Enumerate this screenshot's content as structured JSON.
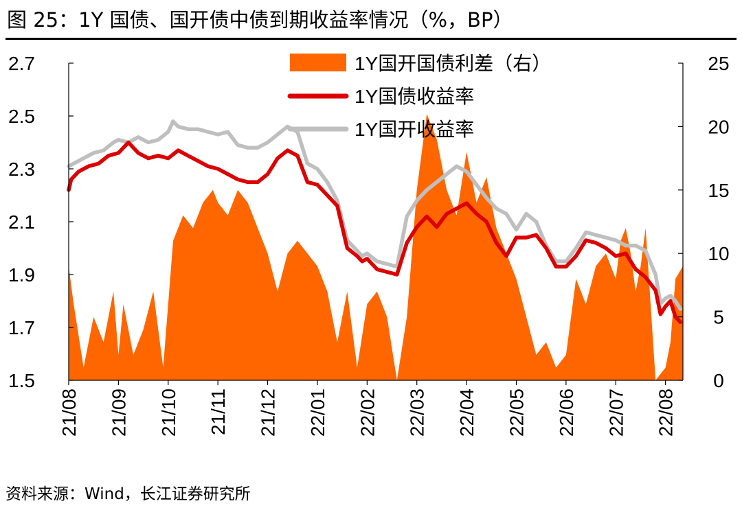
{
  "title": "图 25：1Y 国债、国开债中债到期收益率情况（%，BP）",
  "source": "资料来源：Wind，长江证券研究所",
  "chart_data": {
    "type": "line",
    "title": "图 25：1Y 国债、国开债中债到期收益率情况（%，BP）",
    "x_tick_labels": [
      "21/08",
      "21/09",
      "21/10",
      "21/11",
      "21/12",
      "22/01",
      "22/02",
      "22/03",
      "22/04",
      "22/05",
      "22/06",
      "22/07",
      "22/08"
    ],
    "x_range": [
      0,
      12.35
    ],
    "ylim_left": [
      1.5,
      2.7
    ],
    "yticks_left": [
      1.5,
      1.7,
      1.9,
      2.1,
      2.3,
      2.5,
      2.7
    ],
    "ytick_labels_left": [
      "1.5",
      "1.7",
      "1.9",
      "2.1",
      "2.3",
      "2.5",
      "2.7"
    ],
    "ylim_right": [
      0,
      25
    ],
    "yticks_right": [
      0,
      5,
      10,
      15,
      20,
      25
    ],
    "ytick_labels_right": [
      "0",
      "5",
      "10",
      "15",
      "20",
      "25"
    ],
    "legend_position": "top-center",
    "series": [
      {
        "name": "1Y国开国债利差（右）",
        "type": "area",
        "axis": "right",
        "color": "#FF6600",
        "x": [
          0,
          0.1,
          0.3,
          0.5,
          0.7,
          0.9,
          1.0,
          1.1,
          1.3,
          1.5,
          1.7,
          1.9,
          2.0,
          2.1,
          2.3,
          2.5,
          2.7,
          2.9,
          3.0,
          3.2,
          3.4,
          3.6,
          3.8,
          4.0,
          4.2,
          4.4,
          4.6,
          4.8,
          5.0,
          5.2,
          5.4,
          5.6,
          5.8,
          6.0,
          6.2,
          6.4,
          6.6,
          6.8,
          7.0,
          7.2,
          7.4,
          7.6,
          7.8,
          8.0,
          8.2,
          8.4,
          8.6,
          8.8,
          9.0,
          9.2,
          9.4,
          9.6,
          9.8,
          10.0,
          10.2,
          10.4,
          10.6,
          10.8,
          11.0,
          11.1,
          11.2,
          11.3,
          11.4,
          11.5,
          11.6,
          11.8,
          12.0,
          12.1,
          12.2,
          12.35
        ],
        "values": [
          9,
          6,
          1,
          5,
          3,
          7,
          2,
          6,
          2,
          4,
          7,
          1,
          6,
          11,
          13,
          12,
          14,
          15,
          14,
          13,
          15,
          14,
          12,
          10,
          7,
          10,
          11,
          10,
          9,
          7,
          3,
          7,
          1,
          6,
          7,
          5,
          0,
          5,
          15,
          21,
          19,
          15,
          13,
          18,
          14,
          16,
          12,
          10,
          8,
          5,
          2,
          3,
          1,
          2,
          8,
          6,
          9,
          10,
          8,
          11,
          12,
          10,
          7,
          9,
          12,
          0,
          1,
          3,
          8,
          9
        ]
      },
      {
        "name": "1Y国债收益率",
        "type": "line",
        "axis": "left",
        "color": "#DD0000",
        "x": [
          0,
          0.05,
          0.2,
          0.4,
          0.6,
          0.8,
          1.0,
          1.2,
          1.4,
          1.6,
          1.8,
          2.0,
          2.2,
          2.4,
          2.6,
          2.8,
          3.0,
          3.2,
          3.4,
          3.6,
          3.8,
          4.0,
          4.1,
          4.2,
          4.4,
          4.6,
          4.8,
          5.0,
          5.2,
          5.4,
          5.6,
          5.8,
          5.9,
          6.0,
          6.2,
          6.4,
          6.6,
          6.8,
          7.0,
          7.2,
          7.4,
          7.6,
          7.8,
          8.0,
          8.2,
          8.4,
          8.6,
          8.8,
          9.0,
          9.2,
          9.4,
          9.6,
          9.8,
          10.0,
          10.2,
          10.4,
          10.6,
          10.8,
          11.0,
          11.2,
          11.4,
          11.6,
          11.8,
          11.9,
          12.0,
          12.1,
          12.2,
          12.3
        ],
        "values": [
          2.22,
          2.26,
          2.29,
          2.31,
          2.32,
          2.35,
          2.36,
          2.4,
          2.36,
          2.34,
          2.35,
          2.34,
          2.37,
          2.35,
          2.33,
          2.31,
          2.3,
          2.28,
          2.26,
          2.25,
          2.25,
          2.28,
          2.31,
          2.34,
          2.37,
          2.35,
          2.25,
          2.24,
          2.2,
          2.16,
          2.0,
          1.97,
          1.95,
          1.96,
          1.92,
          1.91,
          1.9,
          2.02,
          2.08,
          2.12,
          2.08,
          2.13,
          2.15,
          2.17,
          2.13,
          2.1,
          2.02,
          1.97,
          2.04,
          2.04,
          2.05,
          2.0,
          1.93,
          1.93,
          1.97,
          2.03,
          2.02,
          2.0,
          1.97,
          1.98,
          1.92,
          1.89,
          1.84,
          1.75,
          1.78,
          1.8,
          1.74,
          1.72
        ]
      },
      {
        "name": "1Y国开收益率",
        "type": "line",
        "axis": "left",
        "color": "#BFBFBF",
        "x": [
          0,
          0.1,
          0.3,
          0.5,
          0.7,
          0.9,
          1.0,
          1.2,
          1.4,
          1.6,
          1.8,
          2.0,
          2.1,
          2.2,
          2.4,
          2.6,
          2.8,
          3.0,
          3.2,
          3.4,
          3.6,
          3.8,
          4.0,
          4.2,
          4.4,
          4.6,
          4.8,
          5.0,
          5.2,
          5.4,
          5.6,
          5.8,
          5.9,
          6.0,
          6.2,
          6.4,
          6.6,
          6.8,
          7.0,
          7.2,
          7.4,
          7.6,
          7.8,
          8.0,
          8.2,
          8.4,
          8.6,
          8.8,
          9.0,
          9.2,
          9.4,
          9.6,
          9.8,
          10.0,
          10.2,
          10.4,
          10.6,
          10.8,
          11.0,
          11.2,
          11.4,
          11.6,
          11.8,
          11.9,
          12.0,
          12.1,
          12.2,
          12.3
        ],
        "values": [
          2.31,
          2.32,
          2.34,
          2.36,
          2.37,
          2.4,
          2.41,
          2.4,
          2.42,
          2.4,
          2.41,
          2.44,
          2.48,
          2.46,
          2.45,
          2.45,
          2.44,
          2.43,
          2.44,
          2.39,
          2.38,
          2.38,
          2.4,
          2.43,
          2.46,
          2.44,
          2.32,
          2.3,
          2.25,
          2.18,
          2.03,
          1.99,
          1.97,
          1.98,
          1.95,
          1.94,
          1.93,
          2.12,
          2.18,
          2.22,
          2.25,
          2.28,
          2.31,
          2.29,
          2.24,
          2.19,
          2.15,
          2.13,
          2.07,
          2.13,
          2.1,
          2.01,
          1.95,
          1.95,
          2.0,
          2.06,
          2.05,
          2.04,
          2.03,
          2.01,
          2.01,
          1.99,
          1.9,
          1.79,
          1.81,
          1.82,
          1.8,
          1.77
        ]
      }
    ]
  }
}
